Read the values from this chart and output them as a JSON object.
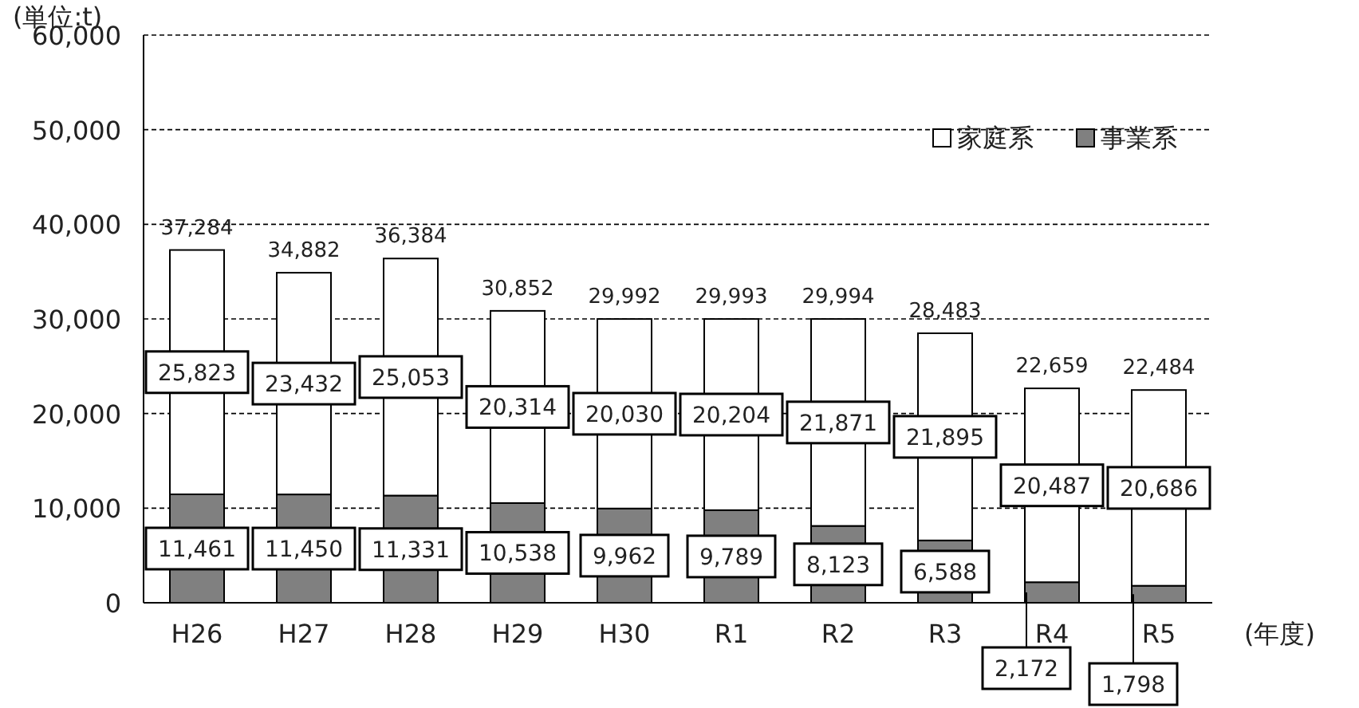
{
  "chart_data": {
    "type": "bar",
    "stacked": true,
    "ylabel": "(単位:t)",
    "xlabel": "(年度)",
    "categories": [
      "H26",
      "H27",
      "H28",
      "H29",
      "H30",
      "R1",
      "R2",
      "R3",
      "R4",
      "R5"
    ],
    "series": [
      {
        "name": "事業系",
        "color": "#808080",
        "values": [
          11461,
          11450,
          11331,
          10538,
          9962,
          9789,
          8123,
          6588,
          2172,
          1798
        ],
        "value_labels": [
          "11,461",
          "11,450",
          "11,331",
          "10,538",
          "9,962",
          "9,789",
          "8,123",
          "6,588",
          "2,172",
          "1,798"
        ]
      },
      {
        "name": "家庭系",
        "color": "#ffffff",
        "values": [
          25823,
          23432,
          25053,
          20314,
          20030,
          20204,
          21871,
          21895,
          20487,
          20686
        ],
        "value_labels": [
          "25,823",
          "23,432",
          "25,053",
          "20,314",
          "20,030",
          "20,204",
          "21,871",
          "21,895",
          "20,487",
          "20,686"
        ]
      }
    ],
    "totals": [
      "37,284",
      "34,882",
      "36,384",
      "30,852",
      "29,992",
      "29,993",
      "29,994",
      "28,483",
      "22,659",
      "22,484"
    ],
    "ylim": [
      0,
      60000
    ],
    "yticks": [
      {
        "value": 0,
        "label": "0"
      },
      {
        "value": 10000,
        "label": "10,000"
      },
      {
        "value": 20000,
        "label": "20,000"
      },
      {
        "value": 30000,
        "label": "30,000"
      },
      {
        "value": 40000,
        "label": "40,000"
      },
      {
        "value": 50000,
        "label": "50,000"
      },
      {
        "value": 60000,
        "label": "60,000"
      }
    ],
    "grid": "y",
    "legend": "top right"
  }
}
